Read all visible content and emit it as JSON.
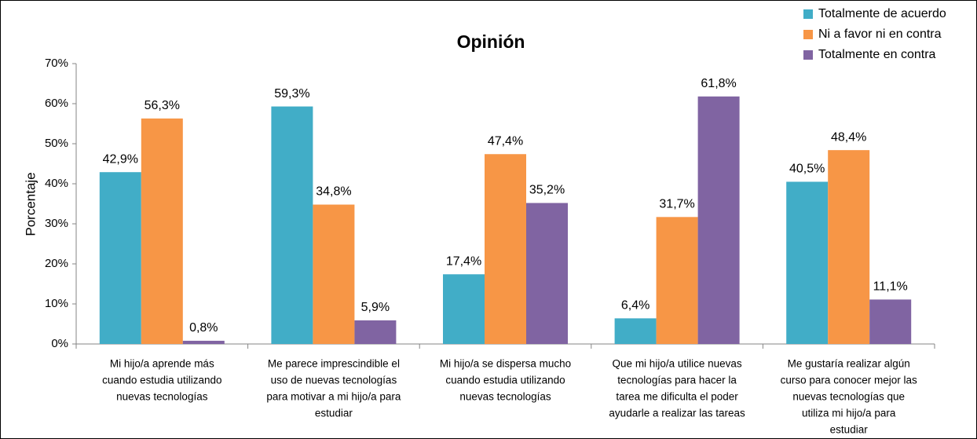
{
  "chart_data": {
    "type": "bar",
    "title": "Opinión",
    "y_label": "Porcentaje",
    "categories": [
      [
        "Mi hijo/a aprende más",
        "cuando estudia utilizando",
        "nuevas tecnologías"
      ],
      [
        "Me parece imprescindible el",
        "uso de nuevas tecnologías",
        "para motivar a mi hijo/a para",
        "estudiar"
      ],
      [
        "Mi hijo/a se dispersa mucho",
        "cuando estudia utilizando",
        "nuevas tecnologías"
      ],
      [
        "Que mi hijo/a utilice nuevas",
        "tecnologías para hacer la",
        "tarea me dificulta el poder",
        "ayudarle a realizar las tareas"
      ],
      [
        "Me gustaría realizar algún",
        "curso para conocer mejor las",
        "nuevas tecnologías que",
        "utiliza mi hijo/a para",
        "estudiar"
      ]
    ],
    "series": [
      {
        "name": "Totalmente de acuerdo",
        "color": "#41adc7",
        "values": [
          42.9,
          59.3,
          17.4,
          6.4,
          40.5
        ],
        "value_labels": [
          "42,9%",
          "59,3%",
          "17,4%",
          "6,4%",
          "40,5%"
        ]
      },
      {
        "name": "Ni a favor ni en contra",
        "color": "#f79646",
        "values": [
          56.3,
          34.8,
          47.4,
          31.7,
          48.4
        ],
        "value_labels": [
          "56,3%",
          "34,8%",
          "47,4%",
          "31,7%",
          "48,4%"
        ]
      },
      {
        "name": "Totalmente en contra",
        "color": "#8064a2",
        "values": [
          0.8,
          5.9,
          35.2,
          61.8,
          11.1
        ],
        "value_labels": [
          "0,8%",
          "5,9%",
          "35,2%",
          "61,8%",
          "11,1%"
        ]
      }
    ],
    "ylim": [
      0,
      70
    ],
    "yticks": [
      {
        "value": 0,
        "label": "0%"
      },
      {
        "value": 10,
        "label": "10%"
      },
      {
        "value": 20,
        "label": "20%"
      },
      {
        "value": 30,
        "label": "30%"
      },
      {
        "value": 40,
        "label": "40%"
      },
      {
        "value": 50,
        "label": "50%"
      },
      {
        "value": 60,
        "label": "60%"
      },
      {
        "value": 70,
        "label": "70%"
      }
    ],
    "legend": "top-right"
  }
}
